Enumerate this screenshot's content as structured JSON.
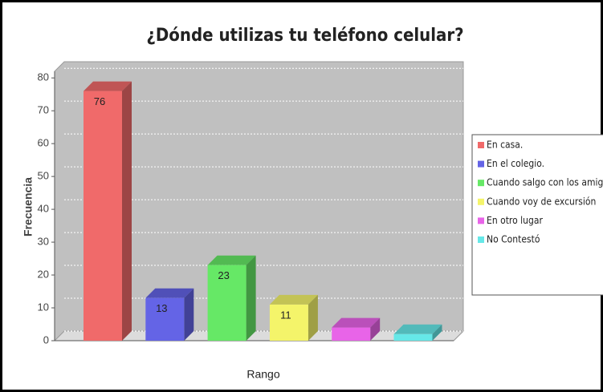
{
  "chart_data": {
    "type": "bar3d",
    "title": "¿Dónde utilizas tu teléfono celular?",
    "x_label": "Rango",
    "y_label": "Frecuencia",
    "categories": [
      "En casa.",
      "En el colegio.",
      "Cuando salgo con los amigos.",
      "Cuando voy de excursión",
      "En otro lugar",
      "No Contestó"
    ],
    "values": [
      76,
      13,
      23,
      11,
      4,
      2
    ],
    "value_labels": [
      "76",
      "13",
      "23",
      "11",
      null,
      null
    ],
    "colors": [
      "#f06a6a",
      "#6464e6",
      "#66e866",
      "#f4f46a",
      "#e864e8",
      "#66e8e8"
    ],
    "ylim": [
      0,
      82
    ],
    "yticks": [
      0,
      10,
      20,
      30,
      40,
      50,
      60,
      70,
      80
    ],
    "grid": true,
    "legend": "right"
  }
}
